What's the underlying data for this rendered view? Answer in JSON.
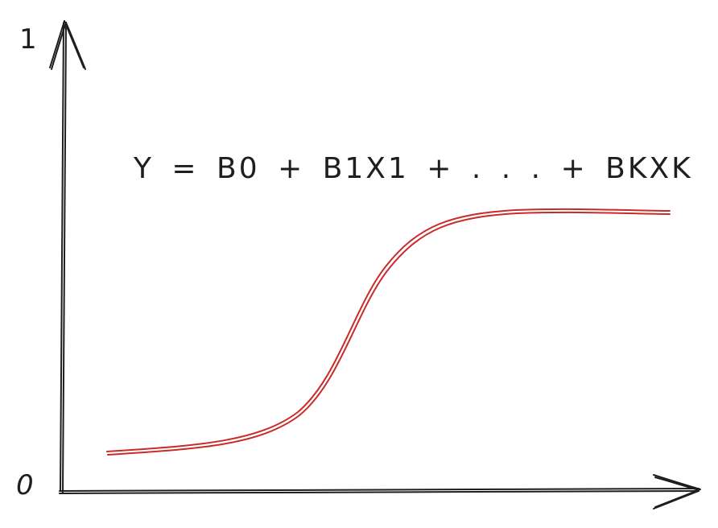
{
  "axis_labels": {
    "y_max": "1",
    "y_min": "0"
  },
  "equation": "Y = B0 + B1X1 + . . . + BKXK",
  "colors": {
    "ink": "#1e1e1e",
    "curve": "#c92a2a",
    "background": "#ffffff"
  },
  "chart_data": {
    "type": "line",
    "curve_shape": "sigmoid",
    "ylim": [
      0,
      1
    ],
    "grid": false
  }
}
